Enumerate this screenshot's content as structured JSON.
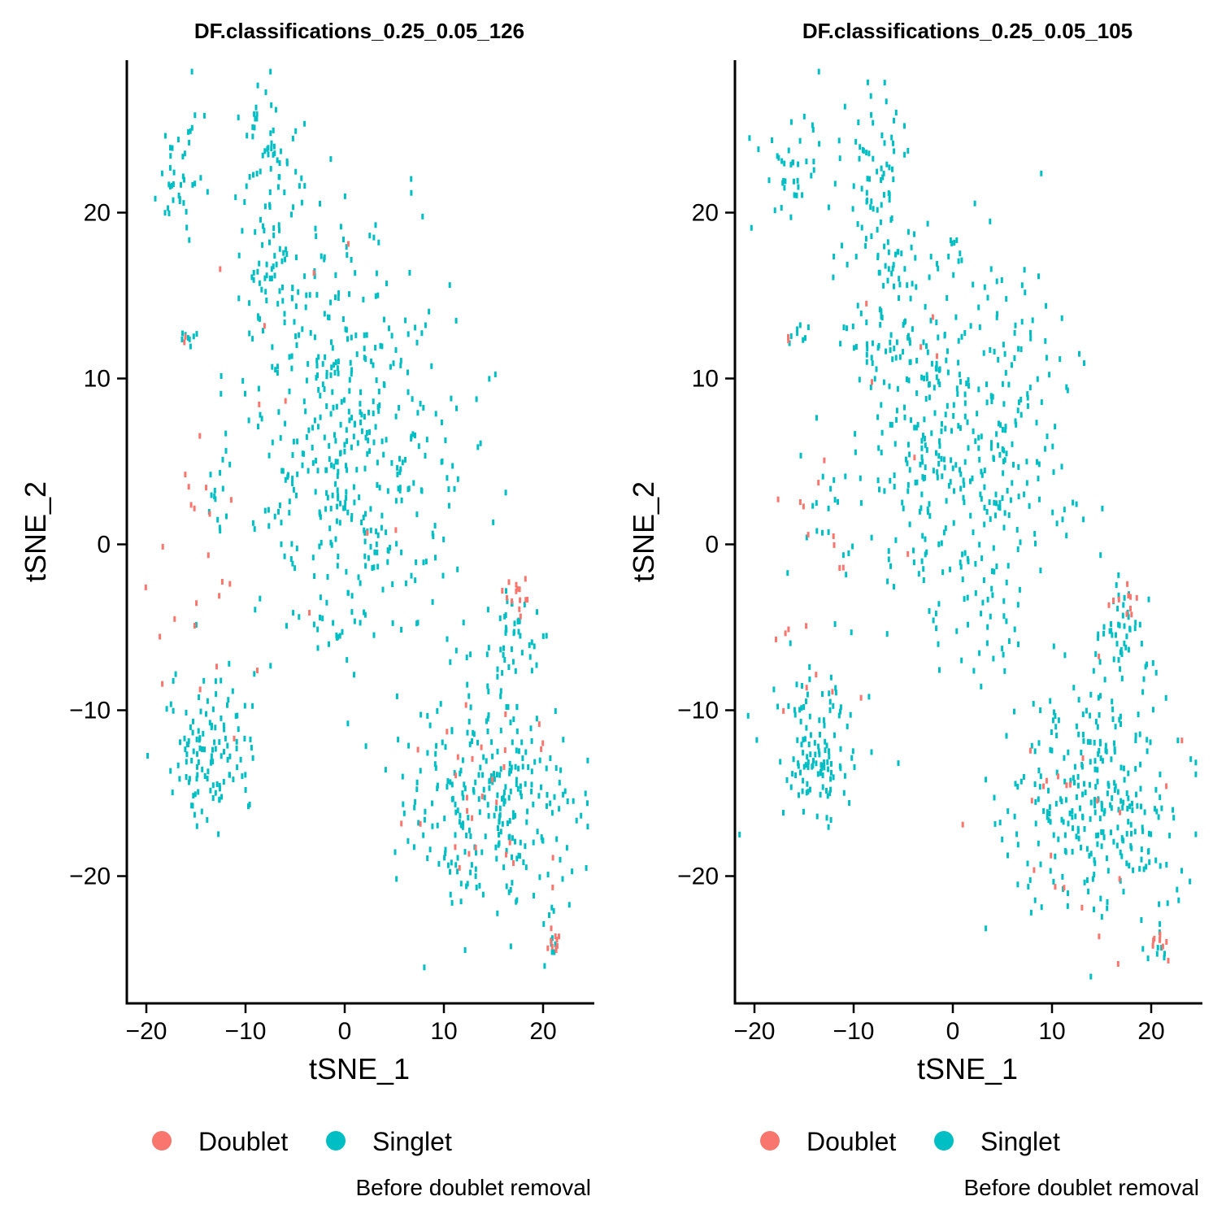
{
  "chart_data": [
    {
      "type": "scatter",
      "title": "DF.classifications_0.25_0.05_126",
      "xlabel": "tSNE_1",
      "ylabel": "tSNE_2",
      "xlim": [
        -22,
        25
      ],
      "ylim": [
        -27.5,
        29
      ],
      "xticks": [
        -20,
        -10,
        0,
        10,
        20
      ],
      "yticks": [
        -20,
        -10,
        0,
        10,
        20
      ],
      "xtick_labels": [
        "−20",
        "−10",
        "0",
        "10",
        "20"
      ],
      "ytick_labels": [
        "−20",
        "−10",
        "0",
        "10",
        "20"
      ],
      "grid": false,
      "legend": {
        "position": "bottom",
        "items": [
          {
            "name": "Doublet",
            "color": "#F8766D"
          },
          {
            "name": "Singlet",
            "color": "#00BFC4"
          }
        ]
      },
      "caption": "Before doublet removal",
      "clusters": [
        {
          "label": "Singlet",
          "center": [
            1,
            5
          ],
          "spread": [
            5.5,
            6
          ],
          "n": 420
        },
        {
          "label": "Singlet",
          "center": [
            -6,
            14
          ],
          "spread": [
            3,
            3
          ],
          "n": 60
        },
        {
          "label": "Singlet",
          "center": [
            -7.5,
            23
          ],
          "spread": [
            1.7,
            2
          ],
          "n": 55
        },
        {
          "label": "Singlet",
          "center": [
            -16,
            22.5
          ],
          "spread": [
            1.6,
            2.2
          ],
          "n": 40
        },
        {
          "label": "Singlet",
          "center": [
            -7,
            18
          ],
          "spread": [
            1.2,
            2
          ],
          "n": 20
        },
        {
          "label": "Singlet",
          "center": [
            0.3,
            17.5
          ],
          "spread": [
            0.4,
            1
          ],
          "n": 6
        },
        {
          "label": "Singlet",
          "center": [
            -15.5,
            12.6
          ],
          "spread": [
            0.5,
            0.3
          ],
          "n": 8
        },
        {
          "label": "Singlet",
          "center": [
            -13,
            2.5
          ],
          "spread": [
            1,
            1.4
          ],
          "n": 12
        },
        {
          "label": "Singlet",
          "center": [
            -13.5,
            -12.5
          ],
          "spread": [
            2.2,
            2.3
          ],
          "n": 120
        },
        {
          "label": "Singlet",
          "center": [
            14.5,
            -15.5
          ],
          "spread": [
            4.2,
            3.2
          ],
          "n": 280
        },
        {
          "label": "Singlet",
          "center": [
            17,
            -5.5
          ],
          "spread": [
            1.3,
            1.5
          ],
          "n": 45
        },
        {
          "label": "Singlet",
          "center": [
            20.5,
            -23.5
          ],
          "spread": [
            0.6,
            1.3
          ],
          "n": 10
        },
        {
          "label": "Doublet",
          "center": [
            13.5,
            -16
          ],
          "spread": [
            5,
            3.5
          ],
          "n": 30
        },
        {
          "label": "Doublet",
          "center": [
            17.3,
            -3.4
          ],
          "spread": [
            0.8,
            0.5
          ],
          "n": 14
        },
        {
          "label": "Doublet",
          "center": [
            21,
            -24
          ],
          "spread": [
            0.4,
            0.5
          ],
          "n": 10
        },
        {
          "label": "Doublet",
          "center": [
            -14,
            2
          ],
          "spread": [
            1.5,
            2.5
          ],
          "n": 10
        },
        {
          "label": "Doublet",
          "center": [
            -15,
            -6
          ],
          "spread": [
            3,
            2.5
          ],
          "n": 12
        },
        {
          "label": "Doublet",
          "center": [
            -6,
            6
          ],
          "spread": [
            6,
            7
          ],
          "n": 10
        },
        {
          "label": "Doublet",
          "center": [
            -16.5,
            12.5
          ],
          "spread": [
            0.3,
            0.2
          ],
          "n": 2
        }
      ]
    },
    {
      "type": "scatter",
      "title": "DF.classifications_0.25_0.05_105",
      "xlabel": "tSNE_1",
      "ylabel": "tSNE_2",
      "xlim": [
        -22,
        25
      ],
      "ylim": [
        -27.5,
        29
      ],
      "xticks": [
        -20,
        -10,
        0,
        10,
        20
      ],
      "yticks": [
        -20,
        -10,
        0,
        10,
        20
      ],
      "xtick_labels": [
        "−20",
        "−10",
        "0",
        "10",
        "20"
      ],
      "ytick_labels": [
        "−20",
        "−10",
        "0",
        "10",
        "20"
      ],
      "grid": false,
      "legend": {
        "position": "bottom",
        "items": [
          {
            "name": "Doublet",
            "color": "#F8766D"
          },
          {
            "name": "Singlet",
            "color": "#00BFC4"
          }
        ]
      },
      "caption": "Before doublet removal",
      "clusters": [
        {
          "label": "Singlet",
          "center": [
            1,
            5
          ],
          "spread": [
            5.5,
            6
          ],
          "n": 420
        },
        {
          "label": "Singlet",
          "center": [
            -6,
            14
          ],
          "spread": [
            3,
            3
          ],
          "n": 60
        },
        {
          "label": "Singlet",
          "center": [
            -7.5,
            23
          ],
          "spread": [
            1.7,
            2
          ],
          "n": 55
        },
        {
          "label": "Singlet",
          "center": [
            -16,
            22.5
          ],
          "spread": [
            1.6,
            2.2
          ],
          "n": 40
        },
        {
          "label": "Singlet",
          "center": [
            -7,
            18
          ],
          "spread": [
            1.2,
            2
          ],
          "n": 20
        },
        {
          "label": "Singlet",
          "center": [
            0.3,
            17.5
          ],
          "spread": [
            0.4,
            1
          ],
          "n": 6
        },
        {
          "label": "Singlet",
          "center": [
            -15.5,
            12.6
          ],
          "spread": [
            0.5,
            0.3
          ],
          "n": 8
        },
        {
          "label": "Singlet",
          "center": [
            -13,
            2.5
          ],
          "spread": [
            1,
            1.4
          ],
          "n": 12
        },
        {
          "label": "Singlet",
          "center": [
            -13.5,
            -12.5
          ],
          "spread": [
            2.2,
            2.3
          ],
          "n": 120
        },
        {
          "label": "Singlet",
          "center": [
            14.5,
            -15.5
          ],
          "spread": [
            4.2,
            3.2
          ],
          "n": 290
        },
        {
          "label": "Singlet",
          "center": [
            17,
            -5.5
          ],
          "spread": [
            1.3,
            1.5
          ],
          "n": 48
        },
        {
          "label": "Singlet",
          "center": [
            20.5,
            -23.5
          ],
          "spread": [
            0.6,
            1.3
          ],
          "n": 11
        },
        {
          "label": "Doublet",
          "center": [
            13.5,
            -16
          ],
          "spread": [
            5,
            3.5
          ],
          "n": 22
        },
        {
          "label": "Doublet",
          "center": [
            17.3,
            -3.4
          ],
          "spread": [
            0.8,
            0.5
          ],
          "n": 10
        },
        {
          "label": "Doublet",
          "center": [
            21,
            -24
          ],
          "spread": [
            0.4,
            0.5
          ],
          "n": 9
        },
        {
          "label": "Doublet",
          "center": [
            -14,
            2
          ],
          "spread": [
            1.5,
            2.5
          ],
          "n": 8
        },
        {
          "label": "Doublet",
          "center": [
            -15,
            -6
          ],
          "spread": [
            3,
            2.5
          ],
          "n": 10
        },
        {
          "label": "Doublet",
          "center": [
            -6,
            6
          ],
          "spread": [
            6,
            7
          ],
          "n": 8
        },
        {
          "label": "Doublet",
          "center": [
            -16.5,
            12.5
          ],
          "spread": [
            0.3,
            0.2
          ],
          "n": 2
        }
      ]
    }
  ]
}
